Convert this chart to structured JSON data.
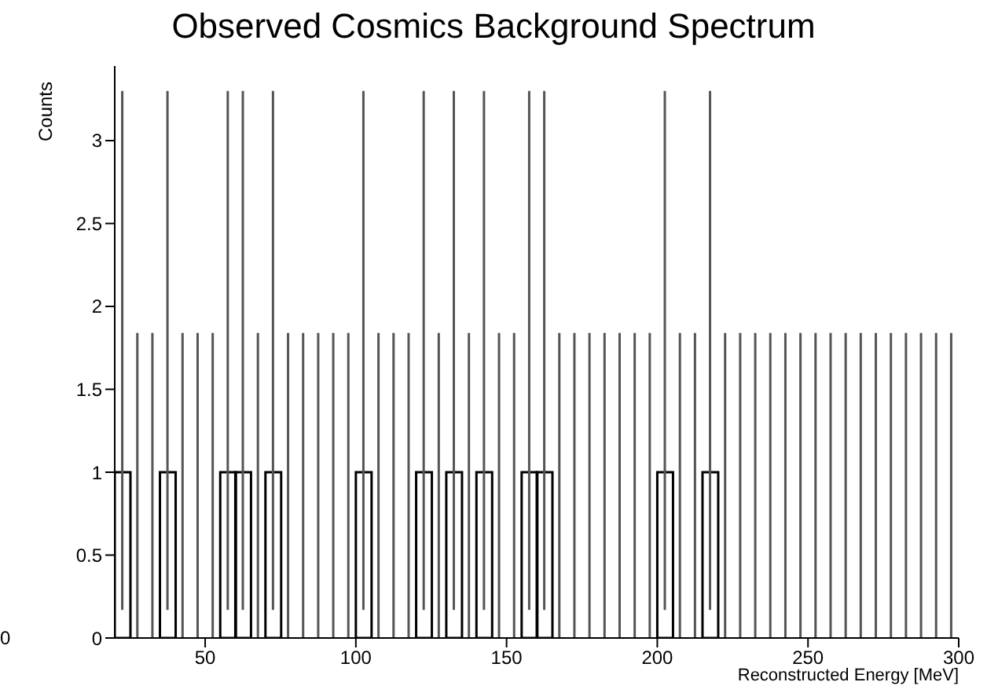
{
  "chart_data": {
    "type": "histogram",
    "title": "Observed Cosmics Background Spectrum",
    "xlabel": "Reconstructed Energy [MeV]",
    "ylabel": "Counts",
    "bins": [
      20,
      25,
      30,
      35,
      40,
      45,
      50,
      55,
      60,
      65,
      70,
      75,
      80,
      85,
      90,
      95,
      100,
      105,
      110,
      115,
      120,
      125,
      130,
      135,
      140,
      145,
      150,
      155,
      160,
      165,
      170,
      175,
      180,
      185,
      190,
      195,
      200,
      205,
      210,
      215,
      220,
      225,
      230,
      235,
      240,
      245,
      250,
      255,
      260,
      265,
      270,
      275,
      280,
      285,
      290,
      295,
      300
    ],
    "values": [
      1,
      0,
      0,
      1,
      0,
      0,
      0,
      1,
      1,
      0,
      1,
      0,
      0,
      0,
      0,
      0,
      1,
      0,
      0,
      0,
      1,
      0,
      1,
      0,
      1,
      0,
      0,
      1,
      1,
      0,
      0,
      0,
      0,
      0,
      0,
      0,
      1,
      0,
      0,
      1,
      0,
      0,
      0,
      0,
      0,
      0,
      0,
      0,
      0,
      0,
      0,
      0,
      0,
      0,
      0,
      0
    ],
    "errors": [
      [
        0.17,
        3.3
      ],
      [
        0,
        1.84
      ],
      [
        0,
        1.84
      ],
      [
        0.17,
        3.3
      ],
      [
        0,
        1.84
      ],
      [
        0,
        1.84
      ],
      [
        0,
        1.84
      ],
      [
        0.17,
        3.3
      ],
      [
        0.17,
        3.3
      ],
      [
        0,
        1.84
      ],
      [
        0.17,
        3.3
      ],
      [
        0,
        1.84
      ],
      [
        0,
        1.84
      ],
      [
        0,
        1.84
      ],
      [
        0,
        1.84
      ],
      [
        0,
        1.84
      ],
      [
        0.17,
        3.3
      ],
      [
        0,
        1.84
      ],
      [
        0,
        1.84
      ],
      [
        0,
        1.84
      ],
      [
        0.17,
        3.3
      ],
      [
        0,
        1.84
      ],
      [
        0.17,
        3.3
      ],
      [
        0,
        1.84
      ],
      [
        0.17,
        3.3
      ],
      [
        0,
        1.84
      ],
      [
        0,
        1.84
      ],
      [
        0.17,
        3.3
      ],
      [
        0.17,
        3.3
      ],
      [
        0,
        1.84
      ],
      [
        0,
        1.84
      ],
      [
        0,
        1.84
      ],
      [
        0,
        1.84
      ],
      [
        0,
        1.84
      ],
      [
        0,
        1.84
      ],
      [
        0,
        1.84
      ],
      [
        0.17,
        3.3
      ],
      [
        0,
        1.84
      ],
      [
        0,
        1.84
      ],
      [
        0.17,
        3.3
      ],
      [
        0,
        1.84
      ],
      [
        0,
        1.84
      ],
      [
        0,
        1.84
      ],
      [
        0,
        1.84
      ],
      [
        0,
        1.84
      ],
      [
        0,
        1.84
      ],
      [
        0,
        1.84
      ],
      [
        0,
        1.84
      ],
      [
        0,
        1.84
      ],
      [
        0,
        1.84
      ],
      [
        0,
        1.84
      ],
      [
        0,
        1.84
      ],
      [
        0,
        1.84
      ],
      [
        0,
        1.84
      ],
      [
        0,
        1.84
      ],
      [
        0,
        1.84
      ]
    ],
    "color": "#000000",
    "xlim": [
      20,
      300
    ],
    "xticks": [
      50,
      100,
      150,
      200,
      250,
      300
    ],
    "ylim": [
      0,
      3.45
    ],
    "yticks": [
      0,
      0.5,
      1,
      1.5,
      2,
      2.5,
      3
    ],
    "annotations": [
      "0"
    ]
  }
}
